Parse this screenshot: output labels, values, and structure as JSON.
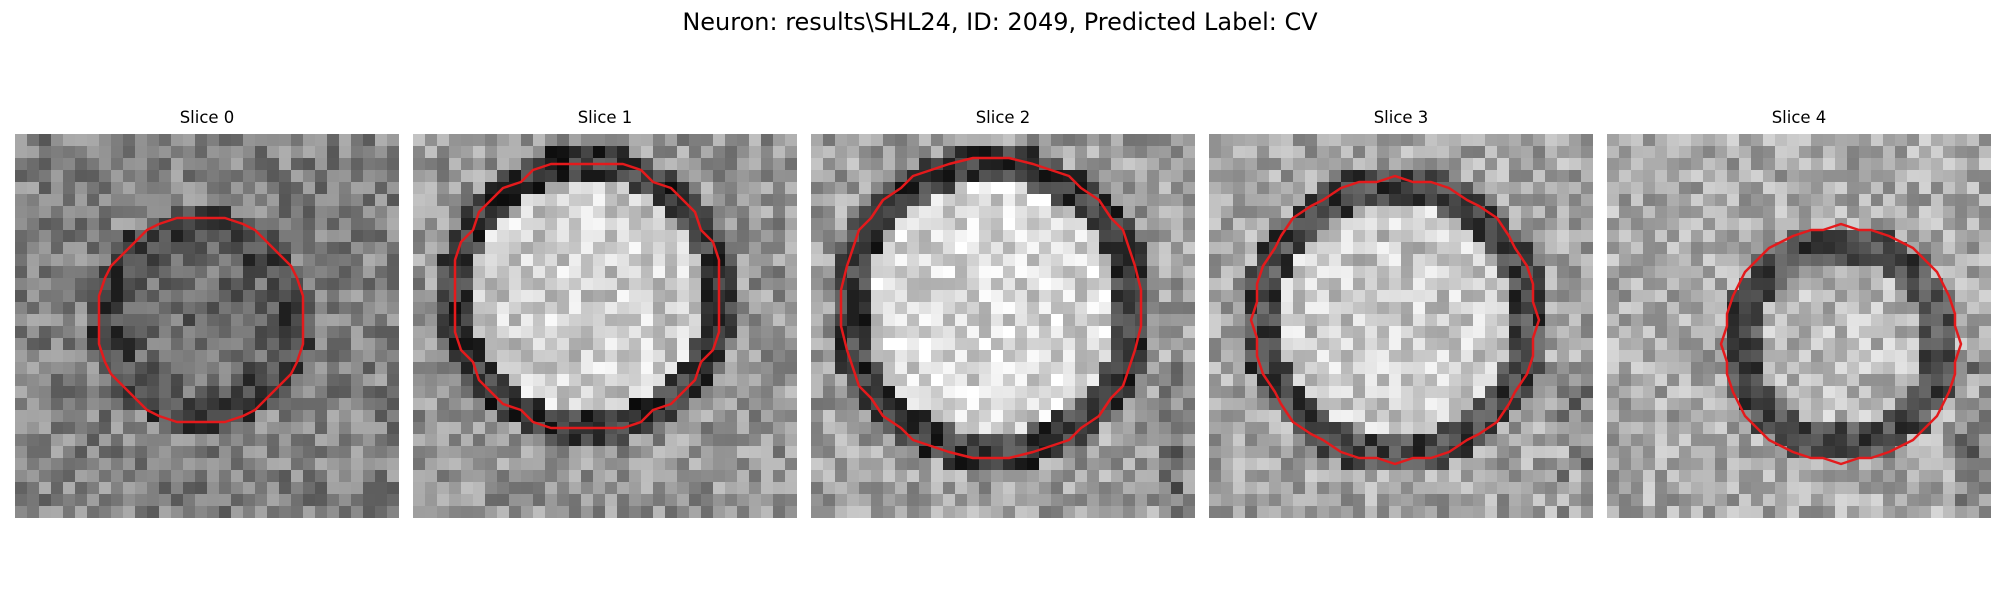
{
  "figure": {
    "title": "Neuron: results\\SHL24, ID: 2049, Predicted Label: CV"
  },
  "panels": [
    {
      "title": "Slice 0",
      "contour": "red-outline"
    },
    {
      "title": "Slice 1",
      "contour": "red-outline"
    },
    {
      "title": "Slice 2",
      "contour": "red-outline"
    },
    {
      "title": "Slice 3",
      "contour": "red-outline"
    },
    {
      "title": "Slice 4",
      "contour": "red-outline"
    }
  ],
  "colors": {
    "contour": "#e41a1c",
    "colormap": "gray"
  }
}
